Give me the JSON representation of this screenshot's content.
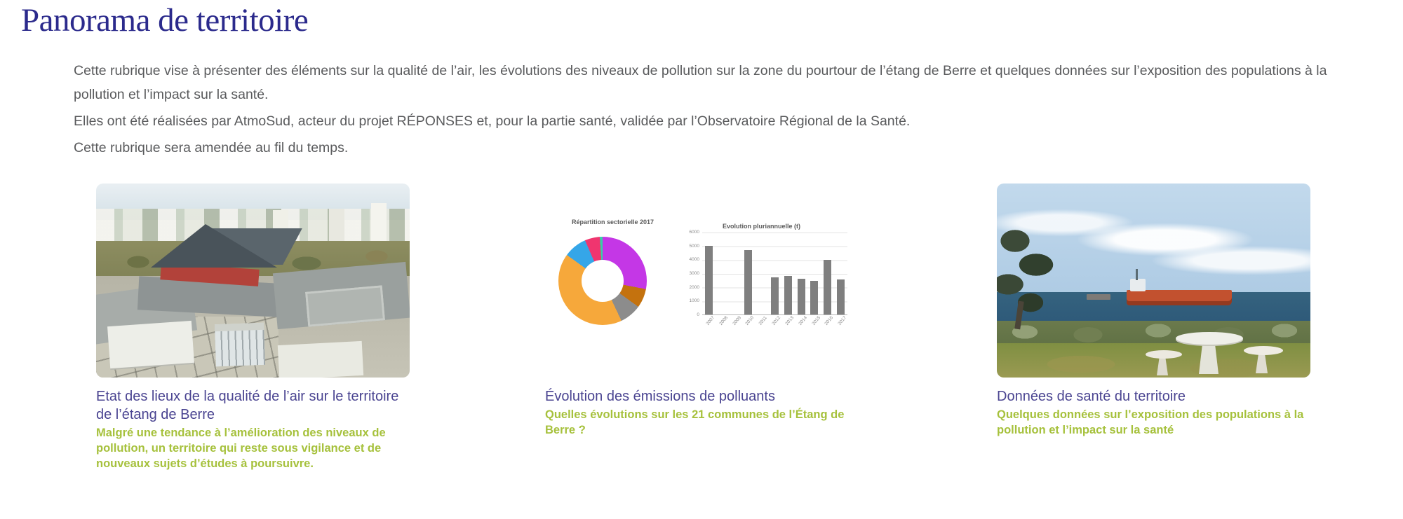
{
  "page": {
    "title": "Panorama de territoire",
    "intro": [
      "Cette rubrique vise à présenter des éléments sur la qualité de l’air, les évolutions des niveaux de pollution sur la zone du pourtour de l’étang de Berre et quelques données sur l’exposition des populations à la pollution et l’impact sur la santé.",
      "Elles ont été réalisées par AtmoSud, acteur du projet RÉPONSES et, pour la partie santé, validée par l’Observatoire Régional de la Santé.",
      "Cette rubrique sera amendée au fil du temps."
    ]
  },
  "colors": {
    "heading": "#2b2a8c",
    "card_title": "#4a4491",
    "card_subtitle_green": "#a6c13c",
    "body_text": "#595a5c",
    "bar_fill": "#7f7f7f"
  },
  "cards": [
    {
      "title": "Etat des lieux de la qualité de l’air sur le territoire de l’étang de Berre",
      "subtitle": "Malgré une tendance à l’amélioration des niveaux de pollution, un territoire qui reste sous vigilance et de nouveaux sujets d’études à poursuivre.",
      "image": "aerial-photo-buildings-etang-de-berre"
    },
    {
      "title": "Évolution des émissions de polluants",
      "subtitle": "Quelles évolutions sur les 21 communes de l’Étang de Berre ?",
      "image": "emissions-charts"
    },
    {
      "title": "Données de santé du territoire",
      "subtitle": "Quelques données sur l’exposition des populations à la pollution et l’impact sur la santé",
      "image": "coastal-photo-tanker-picnic-table"
    }
  ],
  "chart_data": [
    {
      "type": "pie",
      "subtype": "donut",
      "title": "Répartition sectorielle 2017",
      "legend": "none",
      "segments": [
        {
          "color": "#c437e6",
          "percent": 28
        },
        {
          "color": "#c4720e",
          "percent": 7
        },
        {
          "color": "#8c8c8c",
          "percent": 8
        },
        {
          "color": "#f6a83b",
          "percent": 42
        },
        {
          "color": "#35a6e8",
          "percent": 8.5
        },
        {
          "color": "#f0356f",
          "percent": 5.5
        },
        {
          "color": "#35d0a8",
          "percent": 1
        }
      ]
    },
    {
      "type": "bar",
      "title": "Evolution pluriannuelle (t)",
      "categories": [
        "2007",
        "2008",
        "2009",
        "2010",
        "2011",
        "2012",
        "2013",
        "2014",
        "2015",
        "2016",
        "2017"
      ],
      "values": [
        5050,
        null,
        null,
        4700,
        null,
        2700,
        2800,
        2600,
        2450,
        4000,
        2550
      ],
      "xlabel": "",
      "ylabel": "",
      "ylim": [
        0,
        6000
      ],
      "ytick_step": 1000,
      "grid": true,
      "legend": "none"
    }
  ]
}
